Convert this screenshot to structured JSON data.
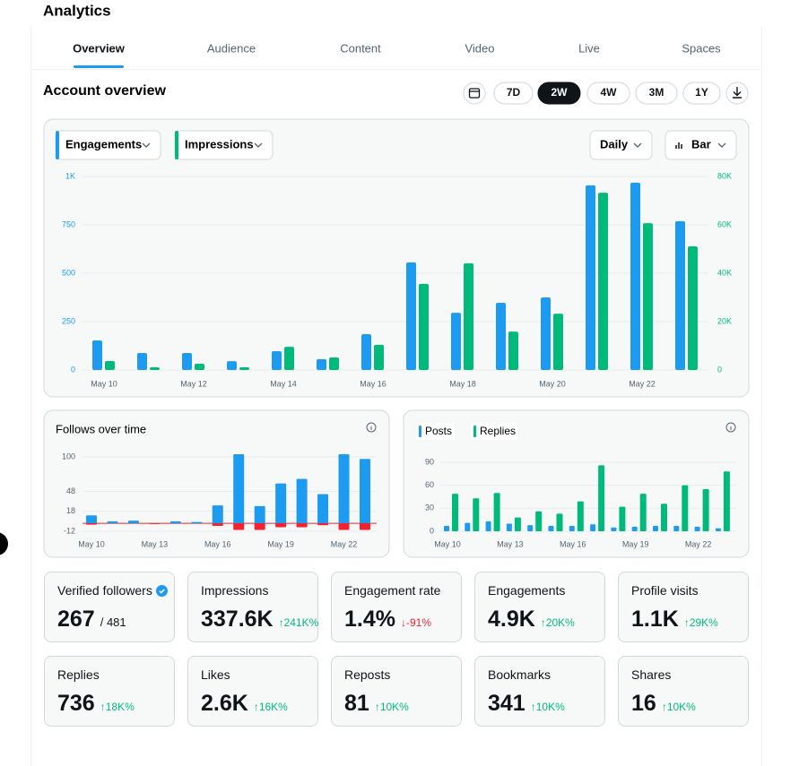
{
  "header": {
    "title": "Analytics"
  },
  "tabs": [
    "Overview",
    "Audience",
    "Content",
    "Video",
    "Live",
    "Spaces"
  ],
  "overview": {
    "title": "Account overview",
    "ranges": [
      "7D",
      "2W",
      "4W",
      "3M",
      "1Y"
    ]
  },
  "main_chart": {
    "type": "bar",
    "controls": [
      "Daily",
      "Bar"
    ],
    "categories": [
      "May 10",
      null,
      "May 12",
      null,
      "May 14",
      null,
      "May 16",
      null,
      "May 18",
      null,
      "May 20",
      null,
      "May 22",
      null
    ],
    "series": [
      {
        "name": "Engagements",
        "color": "#1d9bf0",
        "values": [
          153,
          88,
          88,
          46,
          97,
          56,
          185,
          556,
          296,
          347,
          375,
          954,
          968,
          769
        ]
      },
      {
        "name": "Impressions",
        "color": "#00ba7c",
        "axis": "y2",
        "values": [
          3700,
          1100,
          2600,
          1100,
          9600,
          5200,
          10400,
          35600,
          44100,
          15900,
          23300,
          73300,
          60700,
          51100
        ]
      }
    ],
    "ylim": [
      0,
      1000
    ],
    "yticks": [
      0,
      250,
      500,
      750,
      {
        "value": 1000,
        "label": "1K"
      }
    ],
    "y2lim": [
      0,
      80000
    ],
    "y2ticks": [
      0,
      {
        "value": 20000,
        "label": "20K"
      },
      {
        "value": 40000,
        "label": "40K"
      },
      {
        "value": 60000,
        "label": "60K"
      },
      {
        "value": 80000,
        "label": "80K"
      }
    ],
    "grid": true
  },
  "follows_chart": {
    "type": "bar",
    "title": "Follows over time",
    "categories": [
      "May 10",
      null,
      null,
      "May 13",
      null,
      null,
      "May 16",
      null,
      null,
      "May 19",
      null,
      null,
      "May 22",
      null
    ],
    "series": [
      {
        "color": "#1d9bf0",
        "values": [
          12,
          3,
          4,
          0,
          3,
          2,
          27,
          104,
          26,
          60,
          67,
          44,
          104,
          97
        ]
      },
      {
        "color": "#f4212e",
        "values": [
          -2,
          0,
          0,
          -1,
          0,
          0,
          -4,
          -10,
          -10,
          -6,
          -6,
          -3,
          -10,
          -10
        ]
      }
    ],
    "ylim": [
      -15,
      105
    ],
    "yticks": [
      -12,
      18,
      48,
      100
    ],
    "grid": true
  },
  "posts_chart": {
    "type": "bar",
    "categories": [
      "May 10",
      null,
      null,
      "May 13",
      null,
      null,
      "May 16",
      null,
      null,
      "May 19",
      null,
      null,
      "May 22",
      null
    ],
    "series": [
      {
        "name": "Posts",
        "color": "#1d9bf0",
        "values": [
          7,
          11,
          13,
          10,
          8,
          7,
          7,
          9,
          5,
          6,
          7,
          7,
          6,
          4
        ]
      },
      {
        "name": "Replies",
        "color": "#00ba7c",
        "values": [
          49,
          43,
          50,
          18,
          26,
          23,
          39,
          86,
          32,
          49,
          36,
          60,
          55,
          78
        ]
      }
    ],
    "ylim": [
      0,
      90
    ],
    "yticks": [
      0,
      30,
      60,
      90
    ],
    "grid": true
  },
  "stats": [
    {
      "label": "Verified followers",
      "value": "267",
      "total": "/ 481"
    },
    {
      "label": "Impressions",
      "value": "337.6K",
      "change": "↑241K%",
      "color": "#00ba7c"
    },
    {
      "label": "Engagement rate",
      "value": "1.4%",
      "change": "↓-91%",
      "color": "#f4212e"
    },
    {
      "label": "Engagements",
      "value": "4.9K",
      "change": "↑20K%",
      "color": "#00ba7c"
    },
    {
      "label": "Profile visits",
      "value": "1.1K",
      "change": "↑29K%",
      "color": "#00ba7c"
    },
    {
      "label": "Replies",
      "value": "736",
      "change": "↑18K%",
      "color": "#00ba7c"
    },
    {
      "label": "Likes",
      "value": "2.6K",
      "change": "↑16K%",
      "color": "#00ba7c"
    },
    {
      "label": "Reposts",
      "value": "81",
      "change": "↑10K%",
      "color": "#00ba7c"
    },
    {
      "label": "Bookmarks",
      "value": "341",
      "change": "↑10K%",
      "color": "#00ba7c"
    },
    {
      "label": "Shares",
      "value": "16",
      "change": "↑10K%",
      "color": "#00ba7c"
    }
  ]
}
